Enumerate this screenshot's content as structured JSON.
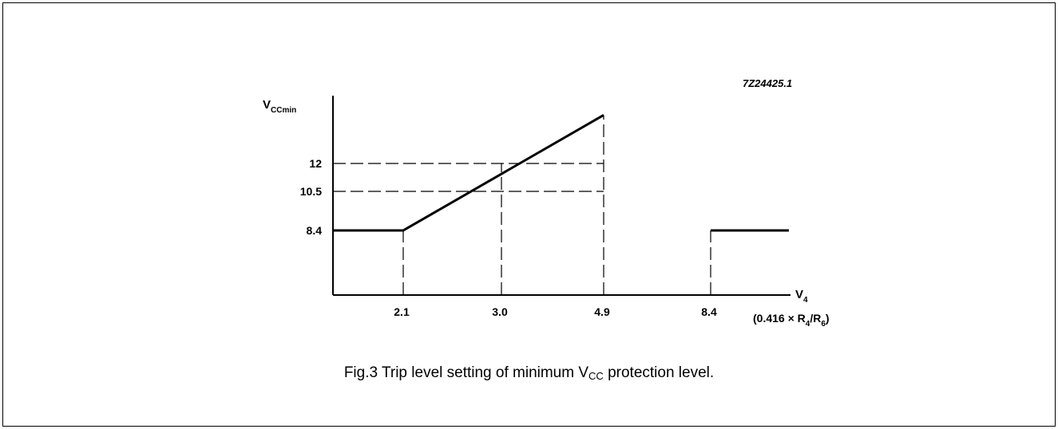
{
  "chart_data": {
    "type": "line",
    "figure_code": "7Z24425.1",
    "x_axis": {
      "label_main": "V",
      "label_sub": "4",
      "formula": {
        "open": "(0.416 × R",
        "sub1": "4",
        "mid": "/R",
        "sub2": "6",
        "close": ")"
      },
      "ticks": [
        "2.1",
        "3.0",
        "4.9",
        "8.4"
      ]
    },
    "y_axis": {
      "label_main": "V",
      "label_sub": "CCmin",
      "ticks": [
        "12",
        "10.5",
        "8.4"
      ]
    },
    "series": [
      {
        "segments": [
          {
            "points": [
              [
                1.6,
                8.4
              ],
              [
                2.1,
                8.4
              ],
              [
                4.9,
                14.6
              ]
            ]
          },
          {
            "points": [
              [
                8.4,
                8.4
              ],
              [
                9.1,
                8.4
              ]
            ]
          }
        ]
      }
    ],
    "guides": [
      {
        "type": "h",
        "y": 12,
        "x_to": 4.9
      },
      {
        "type": "h",
        "y": 10.5,
        "x_to": 4.9
      },
      {
        "type": "v",
        "x": 2.1,
        "y_to": 8.4
      },
      {
        "type": "v",
        "x": 3.0,
        "y_to": 12
      },
      {
        "type": "v",
        "x": 4.9,
        "y_to": 14.6
      },
      {
        "type": "v",
        "x": 8.4,
        "y_to": 8.4
      }
    ]
  },
  "caption": {
    "prefix": "Fig.3  Trip level setting of minimum V",
    "sub": "CC",
    "suffix": " protection level."
  }
}
